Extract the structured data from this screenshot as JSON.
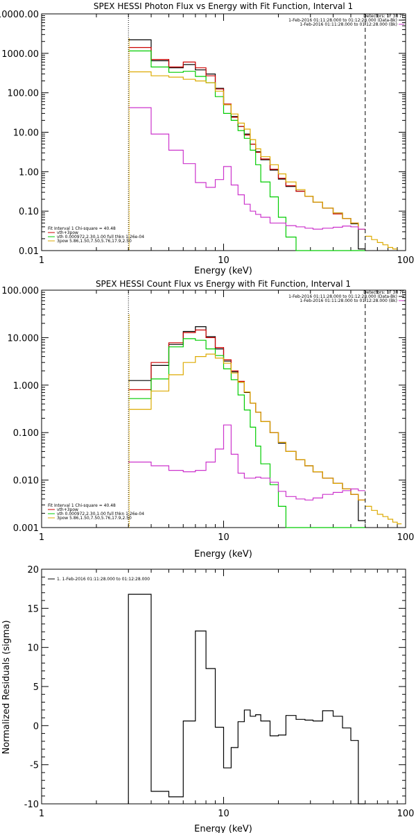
{
  "chart_data": [
    {
      "type": "line",
      "step": true,
      "title": "SPEX HESSI Photon Flux vs Energy with Fit Function, Interval 1",
      "xlabel": "Energy (keV)",
      "ylabel": "",
      "xscale": "log",
      "yscale": "log",
      "xlim": [
        1,
        100
      ],
      "ylim": [
        0.01,
        10000
      ],
      "xticks": [
        {
          "value": 1,
          "label": "1"
        },
        {
          "value": 10,
          "label": "10"
        },
        {
          "value": 100,
          "label": "100"
        }
      ],
      "yticks": [
        {
          "value": 0.01,
          "label": "0.01"
        },
        {
          "value": 0.1,
          "label": "0.10"
        },
        {
          "value": 1,
          "label": "1.00"
        },
        {
          "value": 10,
          "label": "10.00"
        },
        {
          "value": 100,
          "label": "100.00"
        },
        {
          "value": 1000,
          "label": "1000.00"
        },
        {
          "value": 10000,
          "label": "10000.00"
        }
      ],
      "vlines": [
        {
          "x": 3,
          "style": "dotted"
        },
        {
          "x": 60,
          "style": "dashed"
        }
      ],
      "legend_topright": [
        {
          "text": "Detectors: 1F 3F 7F",
          "color": ""
        },
        {
          "text": "1-Feb-2016 01:11:28.000 to 01:12:28.000 (Data-Bk)",
          "color": "#000000"
        },
        {
          "text": "1-Feb-2016 01:11:28.000 to 01:12:28.000 (Bk)",
          "color": "#cc33cc"
        }
      ],
      "legend_bottomleft": [
        {
          "text": "Fit Interval 1   Chi-square = 40.48",
          "color": ""
        },
        {
          "text": "vth+3pow",
          "color": "#cc0000"
        },
        {
          "text": "vth 0.000972,2.30,1.00   full thkn 1.26e-04",
          "color": "#00cc00"
        },
        {
          "text": "3pow 5.86,1.50,7.50,5.76,17.9,2.50",
          "color": "#ddaa00"
        }
      ],
      "edges": [
        3,
        4,
        5,
        6,
        7,
        8,
        9,
        10,
        11,
        12,
        13,
        14,
        15,
        16,
        18,
        20,
        22,
        25,
        28,
        31,
        35,
        40,
        45,
        50,
        55,
        60
      ],
      "series": [
        {
          "color": "#000000",
          "values": [
            2200,
            650,
            430,
            520,
            380,
            300,
            130,
            50,
            25,
            14,
            9,
            5,
            3.2,
            2.0,
            1.1,
            0.65,
            0.42,
            0.32,
            0.24,
            0.17,
            0.12,
            0.09,
            0.065,
            0.048,
            0.011
          ]
        },
        {
          "color": "#cc0000",
          "values": [
            1400,
            700,
            450,
            600,
            430,
            270,
            125,
            52,
            24,
            14,
            8.5,
            5,
            3.1,
            2.1,
            1.15,
            0.68,
            0.44,
            0.32,
            0.24,
            0.17,
            0.12,
            0.085,
            0.065,
            0.05,
            0.035
          ]
        },
        {
          "color": "#00cc00",
          "values": [
            1150,
            450,
            330,
            350,
            260,
            180,
            80,
            30,
            20,
            11,
            7,
            3.5,
            1.5,
            0.55,
            0.23,
            0.07,
            0.022,
            0.01,
            0.01,
            0.01,
            0.01,
            0.01,
            0.01,
            0.01,
            0.01
          ]
        },
        {
          "color": "#ddaa00",
          "values": [
            340,
            270,
            250,
            220,
            200,
            180,
            110,
            50,
            29,
            17,
            12,
            6.5,
            3.8,
            2.4,
            1.5,
            0.88,
            0.55,
            0.35,
            0.24,
            0.17,
            0.12,
            0.09,
            0.065,
            0.05,
            0.035
          ]
        },
        {
          "color": "#cc33cc",
          "values": [
            42,
            9,
            3.5,
            1.6,
            0.53,
            0.4,
            0.63,
            1.35,
            0.46,
            0.26,
            0.15,
            0.1,
            0.083,
            0.07,
            0.05,
            0.05,
            0.043,
            0.04,
            0.037,
            0.035,
            0.037,
            0.039,
            0.042,
            0.04,
            0.035
          ]
        }
      ],
      "tail": {
        "color": "#ddaa00",
        "edges": [
          60,
          65,
          70,
          75,
          80,
          85,
          90
        ],
        "values": [
          0.023,
          0.019,
          0.016,
          0.014,
          0.012,
          0.011
        ]
      }
    },
    {
      "type": "line",
      "step": true,
      "title": "SPEX HESSI Count Flux vs Energy with Fit Function, Interval 1",
      "xlabel": "Energy (keV)",
      "ylabel": "",
      "xscale": "log",
      "yscale": "log",
      "xlim": [
        1,
        100
      ],
      "ylim": [
        0.001,
        100
      ],
      "xticks": [
        {
          "value": 1,
          "label": "1"
        },
        {
          "value": 10,
          "label": "10"
        },
        {
          "value": 100,
          "label": "100"
        }
      ],
      "yticks": [
        {
          "value": 0.001,
          "label": "0.001"
        },
        {
          "value": 0.01,
          "label": "0.010"
        },
        {
          "value": 0.1,
          "label": "0.100"
        },
        {
          "value": 1,
          "label": "1.000"
        },
        {
          "value": 10,
          "label": "10.000"
        },
        {
          "value": 100,
          "label": "100.000"
        }
      ],
      "vlines": [
        {
          "x": 3,
          "style": "dotted"
        },
        {
          "x": 60,
          "style": "dashed"
        }
      ],
      "legend_topright": [
        {
          "text": "Detectors: 1F 3F 7F",
          "color": ""
        },
        {
          "text": "1-Feb-2016 01:11:28.000 to 01:12:28.000 (Data-Bk)",
          "color": "#000000"
        },
        {
          "text": "1-Feb-2016 01:11:28.000 to 01:12:28.000 (Bk)",
          "color": "#cc33cc"
        }
      ],
      "legend_bottomleft": [
        {
          "text": "Fit Interval 1   Chi-square = 40.48",
          "color": ""
        },
        {
          "text": "vth+3pow",
          "color": "#cc0000"
        },
        {
          "text": "vth 0.000972,2.30,1.00   full thkn 1.26e-04",
          "color": "#00cc00"
        },
        {
          "text": "3pow 5.86,1.50,7.50,5.76,17.9,2.50",
          "color": "#ddaa00"
        }
      ],
      "edges": [
        3,
        4,
        5,
        6,
        7,
        8,
        9,
        10,
        11,
        12,
        13,
        14,
        15,
        16,
        18,
        20,
        22,
        25,
        28,
        31,
        35,
        40,
        45,
        50,
        55,
        60
      ],
      "series": [
        {
          "color": "#000000",
          "values": [
            1.25,
            2.6,
            7.2,
            13.5,
            17,
            10.5,
            5.8,
            3.2,
            1.9,
            1.15,
            0.7,
            0.42,
            0.27,
            0.17,
            0.1,
            0.06,
            0.04,
            0.027,
            0.02,
            0.015,
            0.011,
            0.0085,
            0.0065,
            0.005,
            0.0014
          ]
        },
        {
          "color": "#cc0000",
          "values": [
            0.8,
            3,
            7.8,
            12.8,
            14.5,
            10,
            6.2,
            3.4,
            2,
            1.2,
            0.72,
            0.42,
            0.27,
            0.17,
            0.1,
            0.062,
            0.04,
            0.027,
            0.02,
            0.015,
            0.011,
            0.0085,
            0.0065,
            0.005,
            0.0038
          ]
        },
        {
          "color": "#00cc00",
          "values": [
            0.52,
            1.35,
            6.4,
            9.5,
            8.8,
            5.8,
            4.2,
            2.2,
            1.3,
            0.62,
            0.3,
            0.13,
            0.052,
            0.022,
            0.008,
            0.0028,
            0.001,
            0.001,
            0.001,
            0.001,
            0.001,
            0.001,
            0.001,
            0.001,
            0.001
          ]
        },
        {
          "color": "#ddaa00",
          "values": [
            0.31,
            0.75,
            1.65,
            3,
            4,
            4.5,
            3.7,
            2.9,
            1.8,
            1.15,
            0.72,
            0.42,
            0.27,
            0.17,
            0.1,
            0.062,
            0.04,
            0.027,
            0.02,
            0.015,
            0.011,
            0.0085,
            0.0065,
            0.005,
            0.0038
          ]
        },
        {
          "color": "#cc33cc",
          "values": [
            0.024,
            0.02,
            0.016,
            0.015,
            0.016,
            0.024,
            0.045,
            0.145,
            0.035,
            0.014,
            0.011,
            0.011,
            0.0115,
            0.011,
            0.009,
            0.0058,
            0.0045,
            0.004,
            0.0038,
            0.0042,
            0.005,
            0.0055,
            0.006,
            0.0065,
            0.006
          ]
        }
      ],
      "tail": {
        "color": "#ddaa00",
        "edges": [
          60,
          65,
          70,
          75,
          80,
          85,
          90,
          95
        ],
        "values": [
          0.0028,
          0.0023,
          0.0019,
          0.0017,
          0.0015,
          0.0013,
          0.0012
        ]
      }
    },
    {
      "type": "line",
      "step": true,
      "title": "",
      "xlabel": "Energy (keV)",
      "ylabel": "Normalized Residuals (sigma)",
      "xscale": "log",
      "yscale": "linear",
      "xlim": [
        1,
        100
      ],
      "ylim": [
        -10,
        20
      ],
      "xticks": [
        {
          "value": 1,
          "label": "1"
        },
        {
          "value": 10,
          "label": "10"
        },
        {
          "value": 100,
          "label": "100"
        }
      ],
      "yticks": [
        {
          "value": -10,
          "label": "-10"
        },
        {
          "value": -5,
          "label": "-5"
        },
        {
          "value": 0,
          "label": "0"
        },
        {
          "value": 5,
          "label": "5"
        },
        {
          "value": 10,
          "label": "10"
        },
        {
          "value": 15,
          "label": "15"
        },
        {
          "value": 20,
          "label": "20"
        }
      ],
      "vlines": [],
      "legend_topleft": [
        {
          "text": "1.  1-Feb-2016 01:11:28.000 to 01:12:28.000",
          "color": "#000000"
        }
      ],
      "edges": [
        3,
        4,
        5,
        6,
        7,
        8,
        9,
        10,
        11,
        12,
        13,
        14,
        15,
        16,
        18,
        20,
        22,
        25,
        28,
        31,
        35,
        40,
        45,
        50,
        55,
        60
      ],
      "series": [
        {
          "color": "#000000",
          "values": [
            16.8,
            -8.4,
            -9.1,
            0.6,
            12.1,
            7.3,
            -0.2,
            -5.4,
            -2.8,
            0.5,
            2.0,
            1.2,
            1.4,
            0.6,
            -1.3,
            -1.2,
            1.3,
            0.8,
            0.7,
            0.6,
            1.9,
            1.2,
            -0.3,
            -1.9,
            -10
          ]
        }
      ]
    }
  ]
}
